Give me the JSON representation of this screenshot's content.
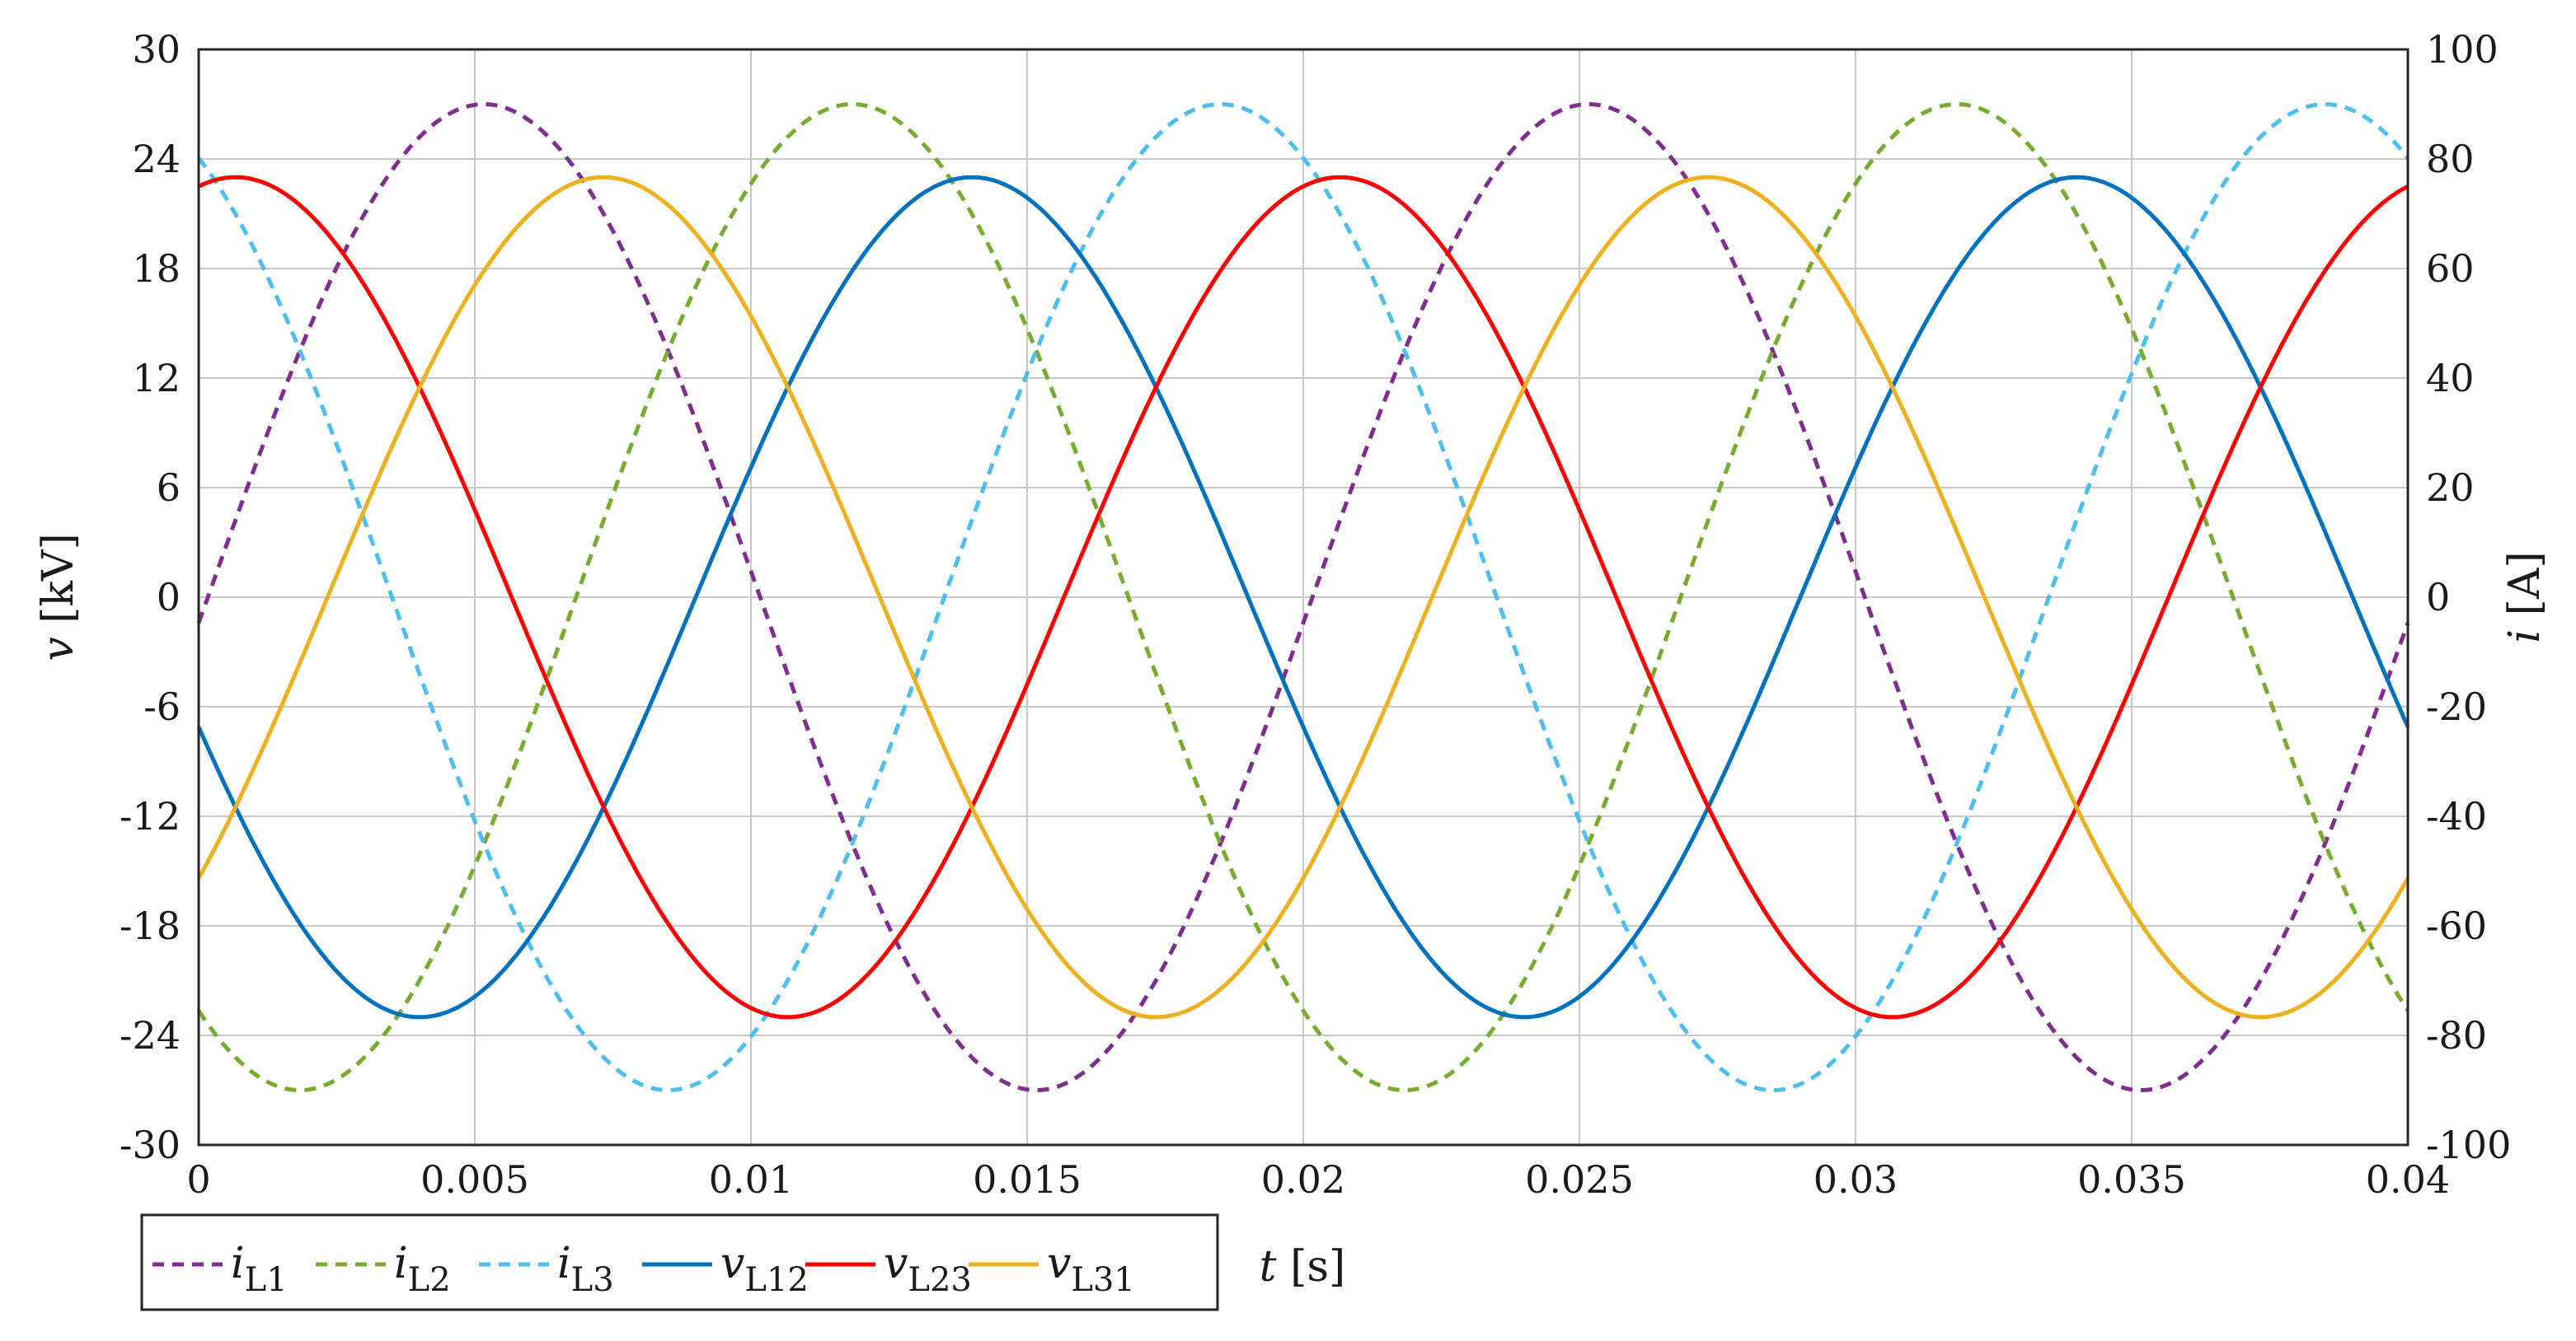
{
  "chart_data": {
    "type": "line",
    "title": "",
    "xlabel": {
      "var": "t",
      "unit": " [s]"
    },
    "ylabel_left": {
      "var": "v",
      "unit": " [kV]"
    },
    "ylabel_right": {
      "var": "i",
      "unit": " [A]"
    },
    "xlim": [
      0,
      0.04
    ],
    "ylim_left": [
      -30,
      30
    ],
    "ylim_right": [
      -100,
      100
    ],
    "grid": true,
    "legend_placement": "bottom-left",
    "x_ticks": [
      "0",
      "0.005",
      "0.01",
      "0.015",
      "0.02",
      "0.025",
      "0.03",
      "0.035",
      "0.04"
    ],
    "y_ticks_left": [
      "30",
      "24",
      "18",
      "12",
      "6",
      "0",
      "-6",
      "-12",
      "-18",
      "-24",
      "-30"
    ],
    "y_ticks_right": [
      "100",
      "80",
      "60",
      "40",
      "20",
      "0",
      "-20",
      "-40",
      "-60",
      "-80",
      "-100"
    ],
    "frequency_hz": 50,
    "series": [
      {
        "name": "i_L1",
        "symbol": "i",
        "sub": "L1",
        "axis": "right",
        "style": "dashed",
        "color": "#7E2F8E",
        "amplitude": 90,
        "phase_deg": -3
      },
      {
        "name": "i_L2",
        "symbol": "i",
        "sub": "L2",
        "axis": "right",
        "style": "dashed",
        "color": "#77AC30",
        "amplitude": 90,
        "phase_deg": -123
      },
      {
        "name": "i_L3",
        "symbol": "i",
        "sub": "L3",
        "axis": "right",
        "style": "dashed",
        "color": "#4DBEEE",
        "amplitude": 90,
        "phase_deg": 117
      },
      {
        "name": "v_L12",
        "symbol": "v",
        "sub": "L12",
        "axis": "left",
        "style": "solid",
        "color": "#0072BD",
        "amplitude": 23,
        "phase_deg": -162
      },
      {
        "name": "v_L23",
        "symbol": "v",
        "sub": "L23",
        "axis": "left",
        "style": "solid",
        "color": "#FF0000",
        "amplitude": 23,
        "phase_deg": 78
      },
      {
        "name": "v_L31",
        "symbol": "v",
        "sub": "L31",
        "axis": "left",
        "style": "solid",
        "color": "#EDB120",
        "amplitude": 23,
        "phase_deg": -42
      }
    ]
  }
}
